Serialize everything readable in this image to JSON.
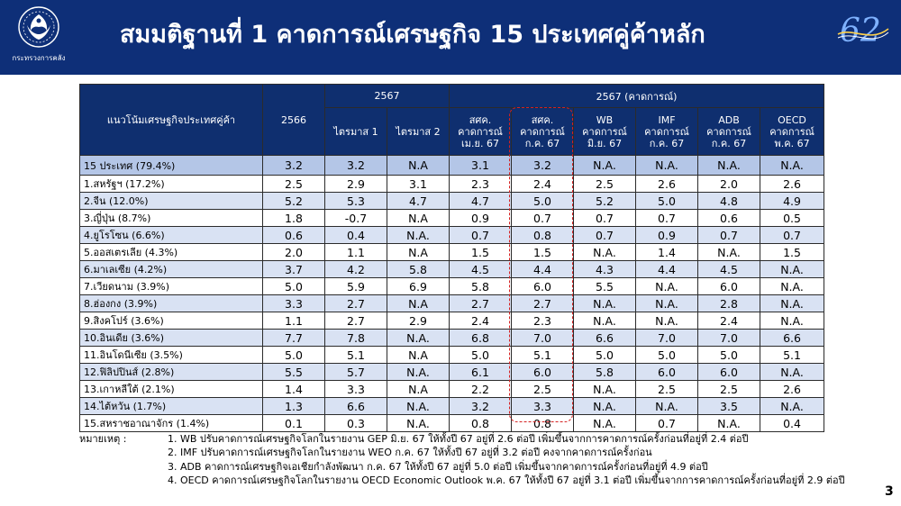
{
  "header": {
    "title": "สมมติฐานที่ 1 คาดการณ์เศรษฐกิจ 15 ประเทศคู่ค้าหลัก",
    "left_logo_caption": "กระทรวงการคลัง",
    "left_logo_icon": "garuda-emblem-icon",
    "right_logo_icon": "62-anniversary-icon"
  },
  "table": {
    "head": {
      "label_col": "แนวโน้มเศรษฐกิจประเทศคู่ค้า",
      "year_col": "2566",
      "group_2567": "2567",
      "group_forecast": "2567 (คาดการณ์)",
      "sub_2567": [
        "ไตรมาส 1",
        "ไตรมาส 2"
      ],
      "forecast_cols": [
        {
          "line1": "สศค.",
          "line2": "คาดการณ์",
          "line3": "เม.ย. 67"
        },
        {
          "line1": "สศค.",
          "line2": "คาดการณ์",
          "line3": "ก.ค. 67"
        },
        {
          "line1": "WB",
          "line2": "คาดการณ์",
          "line3": "มิ.ย. 67"
        },
        {
          "line1": "IMF",
          "line2": "คาดการณ์",
          "line3": "ก.ค. 67"
        },
        {
          "line1": "ADB",
          "line2": "คาดการณ์",
          "line3": "ก.ค. 67"
        },
        {
          "line1": "OECD",
          "line2": "คาดการณ์",
          "line3": "พ.ค. 67"
        }
      ]
    },
    "rows": [
      {
        "name": "15 ประเทศ (79.4%)",
        "v": [
          "3.2",
          "3.2",
          "N.A",
          "3.1",
          "3.2",
          "N.A.",
          "N.A.",
          "N.A.",
          "N.A."
        ]
      },
      {
        "name": "1.สหรัฐฯ (17.2%)",
        "v": [
          "2.5",
          "2.9",
          "3.1",
          "2.3",
          "2.4",
          "2.5",
          "2.6",
          "2.0",
          "2.6"
        ]
      },
      {
        "name": "2.จีน (12.0%)",
        "v": [
          "5.2",
          "5.3",
          "4.7",
          "4.7",
          "5.0",
          "5.2",
          "5.0",
          "4.8",
          "4.9"
        ]
      },
      {
        "name": "3.ญี่ปุ่น (8.7%)",
        "v": [
          "1.8",
          "-0.7",
          "N.A",
          "0.9",
          "0.7",
          "0.7",
          "0.7",
          "0.6",
          "0.5"
        ]
      },
      {
        "name": "4.ยูโรโซน (6.6%)",
        "v": [
          "0.6",
          "0.4",
          "N.A.",
          "0.7",
          "0.8",
          "0.7",
          "0.9",
          "0.7",
          "0.7"
        ]
      },
      {
        "name": "5.ออสเตรเลีย (4.3%)",
        "v": [
          "2.0",
          "1.1",
          "N.A",
          "1.5",
          "1.5",
          "N.A.",
          "1.4",
          "N.A.",
          "1.5"
        ]
      },
      {
        "name": "6.มาเลเซีย (4.2%)",
        "v": [
          "3.7",
          "4.2",
          "5.8",
          "4.5",
          "4.4",
          "4.3",
          "4.4",
          "4.5",
          "N.A."
        ]
      },
      {
        "name": "7.เวียดนาม (3.9%)",
        "v": [
          "5.0",
          "5.9",
          "6.9",
          "5.8",
          "6.0",
          "5.5",
          "N.A.",
          "6.0",
          "N.A."
        ]
      },
      {
        "name": "8.ฮ่องกง (3.9%)",
        "v": [
          "3.3",
          "2.7",
          "N.A",
          "2.7",
          "2.7",
          "N.A.",
          "N.A.",
          "2.8",
          "N.A."
        ]
      },
      {
        "name": "9.สิงคโปร์ (3.6%)",
        "v": [
          "1.1",
          "2.7",
          "2.9",
          "2.4",
          "2.3",
          "N.A.",
          "N.A.",
          "2.4",
          "N.A."
        ]
      },
      {
        "name": "10.อินเดีย (3.6%)",
        "v": [
          "7.7",
          "7.8",
          "N.A.",
          "6.8",
          "7.0",
          "6.6",
          "7.0",
          "7.0",
          "6.6"
        ]
      },
      {
        "name": "11.อินโดนีเซีย (3.5%)",
        "v": [
          "5.0",
          "5.1",
          "N.A",
          "5.0",
          "5.1",
          "5.0",
          "5.0",
          "5.0",
          "5.1"
        ]
      },
      {
        "name": "12.ฟิลิปปินส์ (2.8%)",
        "v": [
          "5.5",
          "5.7",
          "N.A.",
          "6.1",
          "6.0",
          "5.8",
          "6.0",
          "6.0",
          "N.A."
        ]
      },
      {
        "name": "13.เกาหลีใต้ (2.1%)",
        "v": [
          "1.4",
          "3.3",
          "N.A",
          "2.2",
          "2.5",
          "N.A.",
          "2.5",
          "2.5",
          "2.6"
        ]
      },
      {
        "name": "14.ไต้หวัน (1.7%)",
        "v": [
          "1.3",
          "6.6",
          "N.A.",
          "3.2",
          "3.3",
          "N.A.",
          "N.A.",
          "3.5",
          "N.A."
        ]
      },
      {
        "name": "15.สหราชอาณาจักร (1.4%)",
        "v": [
          "0.1",
          "0.3",
          "N.A.",
          "0.8",
          "0.8",
          "N.A.",
          "0.7",
          "N.A.",
          "0.4"
        ]
      }
    ]
  },
  "notes": {
    "label": "หมายเหตุ :",
    "items": [
      "1. WB ปรับคาดการณ์เศรษฐกิจโลกในรายงาน GEP มิ.ย. 67 ให้ทั้งปี 67 อยู่ที่ 2.6 ต่อปี เพิ่มขึ้นจากการคาดการณ์ครั้งก่อนที่อยู่ที่ 2.4 ต่อปี",
      "2. IMF ปรับคาดการณ์เศรษฐกิจโลกในรายงาน WEO ก.ค. 67 ให้ทั้งปี 67 อยู่ที่ 3.2 ต่อปี คงจากคาดการณ์ครั้งก่อน",
      "3. ADB คาดการณ์เศรษฐกิจเอเชียกำลังพัฒนา ก.ค. 67 ให้ทั้งปี 67 อยู่ที่ 5.0 ต่อปี เพิ่มขึ้นจากคาดการณ์ครั้งก่อนที่อยู่ที่ 4.9 ต่อปี",
      "4. OECD คาดการณ์เศรษฐกิจโลกในรายงาน OECD Economic Outlook พ.ค. 67 ให้ทั้งปี 67 อยู่ที่ 3.1 ต่อปี เพิ่มขึ้นจากการคาดการณ์ครั้งก่อนที่อยู่ที่ 2.9 ต่อปี"
    ]
  },
  "page_number": "3",
  "colors": {
    "header_bg": "#0e2f78",
    "table_head_bg": "#0f2f6f",
    "total_row_bg": "#b4c6e7",
    "alt_row_bg": "#d9e2f3",
    "highlight_border": "#d42020"
  }
}
